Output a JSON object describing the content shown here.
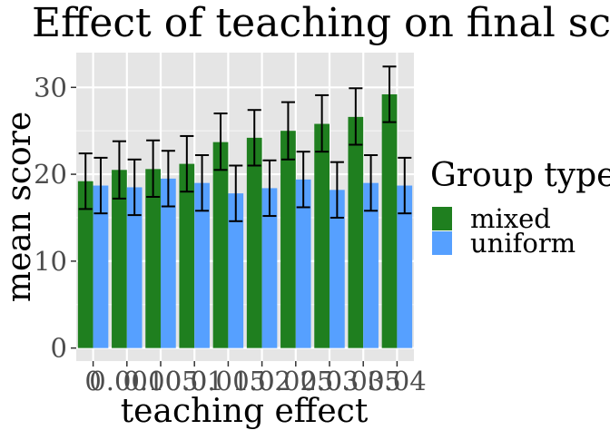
{
  "chart_data": {
    "type": "bar",
    "title": "Effect of teaching on final score",
    "xlabel": "teaching effect",
    "ylabel": "mean score",
    "categories": [
      "0",
      "0.001",
      "0.005",
      "0.01",
      "0.015",
      "0.02",
      "0.025",
      "0.03",
      "0.035",
      "0.04"
    ],
    "ylim": [
      -1.5,
      34
    ],
    "yticks": [
      0,
      10,
      20,
      30
    ],
    "grid": true,
    "background": "#e5e5e5",
    "legend": {
      "title": "Group type",
      "position": "right"
    },
    "series": [
      {
        "name": "mixed",
        "color": "#1f7f1f",
        "values": [
          19.2,
          20.5,
          20.6,
          21.2,
          23.7,
          24.2,
          25.0,
          25.8,
          26.6,
          29.2
        ],
        "error_low": [
          16.0,
          17.2,
          17.4,
          18.0,
          20.5,
          21.0,
          21.7,
          22.6,
          23.4,
          26.0
        ],
        "error_high": [
          22.4,
          23.8,
          23.9,
          24.4,
          27.0,
          27.4,
          28.3,
          29.1,
          29.9,
          32.4
        ]
      },
      {
        "name": "uniform",
        "color": "#56a0ff",
        "values": [
          18.7,
          18.5,
          19.5,
          19.0,
          17.8,
          18.4,
          19.4,
          18.2,
          19.0,
          18.7
        ],
        "error_low": [
          15.5,
          15.3,
          16.3,
          15.8,
          14.6,
          15.2,
          16.2,
          15.0,
          15.8,
          15.5
        ],
        "error_high": [
          21.9,
          21.7,
          22.7,
          22.2,
          21.0,
          21.6,
          22.6,
          21.4,
          22.2,
          21.9
        ]
      }
    ]
  }
}
